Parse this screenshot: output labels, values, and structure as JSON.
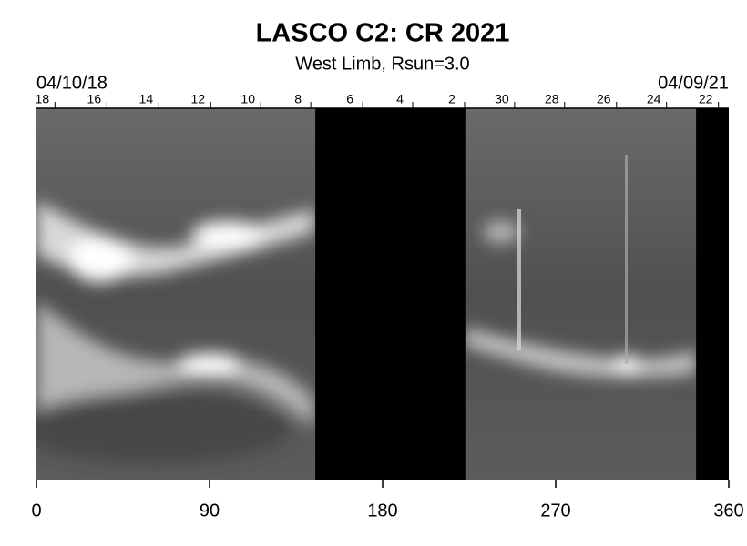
{
  "chart_data": {
    "type": "synoptic-map",
    "title": "LASCO C2: CR 2021",
    "subtitle": "West Limb, Rsun=3.0",
    "start_date": "04/10/18",
    "end_date": "04/09/21",
    "xlim": [
      0,
      360
    ],
    "xticks": [
      0,
      90,
      180,
      270,
      360
    ],
    "x2ticks": [
      {
        "value": 3,
        "label": "18"
      },
      {
        "value": 30,
        "label": "16"
      },
      {
        "value": 57,
        "label": "14"
      },
      {
        "value": 84,
        "label": "12"
      },
      {
        "value": 110,
        "label": "10"
      },
      {
        "value": 136,
        "label": "8"
      },
      {
        "value": 163,
        "label": "6"
      },
      {
        "value": 189,
        "label": "4"
      },
      {
        "value": 216,
        "label": "2"
      },
      {
        "value": 242,
        "label": "30"
      },
      {
        "value": 268,
        "label": "28"
      },
      {
        "value": 295,
        "label": "26"
      },
      {
        "value": 321,
        "label": "24"
      },
      {
        "value": 348,
        "label": "22"
      }
    ],
    "missing": [
      [
        145,
        223
      ],
      [
        343,
        360
      ]
    ]
  }
}
